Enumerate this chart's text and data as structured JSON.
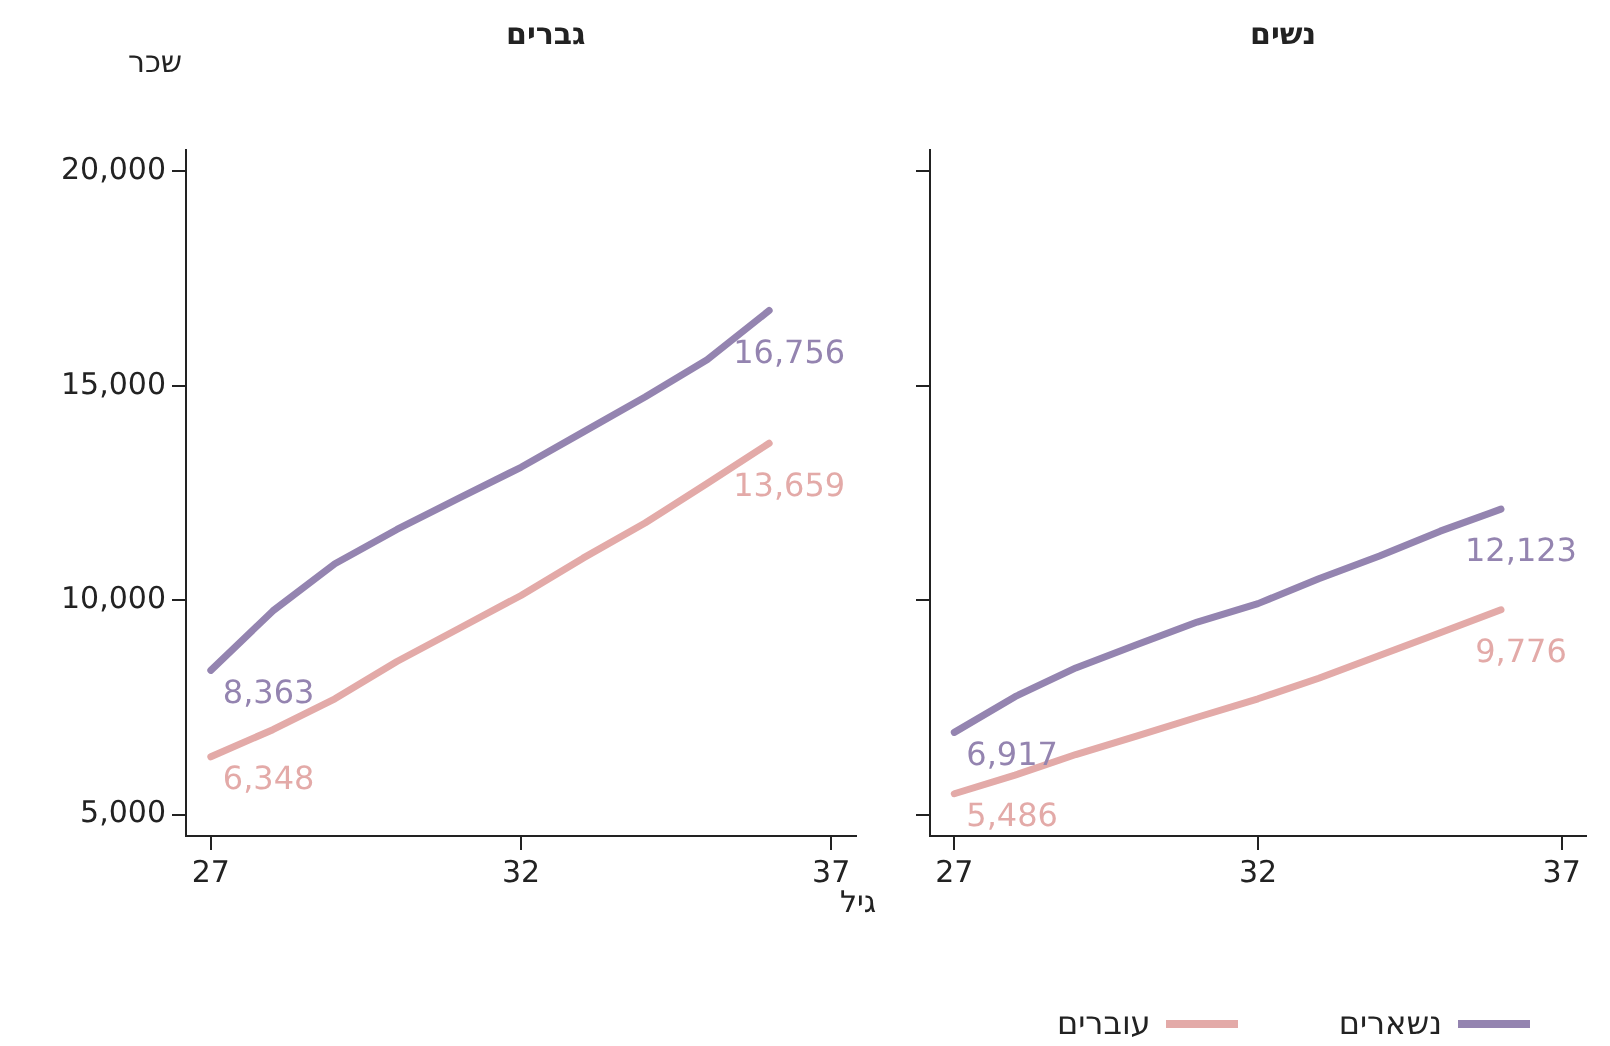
{
  "chart_data": [
    {
      "type": "line",
      "title": "גברים",
      "xlabel": "גיל",
      "ylabel": "שכר",
      "x": [
        27,
        28,
        29,
        30,
        31,
        32,
        33,
        34,
        35,
        36
      ],
      "xlim": [
        26.6,
        37.4
      ],
      "xticks": [
        27,
        32,
        37
      ],
      "ylim": [
        4500,
        20500
      ],
      "yticks": [
        {
          "value": 5000,
          "label": "5,000"
        },
        {
          "value": 10000,
          "label": "10,000"
        },
        {
          "value": 15000,
          "label": "15,000"
        },
        {
          "value": 20000,
          "label": "20,000"
        }
      ],
      "grid": false,
      "marker": "none",
      "line_style": "solid",
      "legend": "bottom right",
      "series": [
        {
          "name": "נשארים",
          "color": "#9484b0",
          "values": [
            8363,
            9750,
            10850,
            11650,
            12380,
            13100,
            13920,
            14740,
            15610,
            16756
          ],
          "value_labels": [
            "8,363",
            null,
            null,
            null,
            null,
            null,
            null,
            null,
            null,
            "16,756"
          ]
        },
        {
          "name": "עוברים",
          "color": "#e3aaa8",
          "values": [
            6348,
            6980,
            7700,
            8570,
            9340,
            10110,
            10980,
            11800,
            12720,
            13659
          ],
          "value_labels": [
            "6,348",
            null,
            null,
            null,
            null,
            null,
            null,
            null,
            null,
            "13,659"
          ]
        }
      ]
    },
    {
      "type": "line",
      "title": "נשים",
      "x": [
        27,
        28,
        29,
        30,
        31,
        32,
        33,
        34,
        35,
        36
      ],
      "xlim": [
        26.6,
        37.4
      ],
      "xticks": [
        27,
        32,
        37
      ],
      "ylim": [
        4500,
        20500
      ],
      "yticks": [
        {
          "value": 5000,
          "label": null
        },
        {
          "value": 10000,
          "label": null
        },
        {
          "value": 15000,
          "label": null
        },
        {
          "value": 20000,
          "label": null
        }
      ],
      "tick_labels": "x",
      "grid": false,
      "marker": "none",
      "line_style": "solid",
      "series": [
        {
          "color": "#9484b0",
          "values": [
            6917,
            7750,
            8420,
            8960,
            9490,
            9920,
            10500,
            11030,
            11610,
            12123
          ],
          "value_labels": [
            "6,917",
            null,
            null,
            null,
            null,
            null,
            null,
            null,
            null,
            "12,123"
          ]
        },
        {
          "color": "#e3aaa8",
          "values": [
            5486,
            5920,
            6400,
            6830,
            7270,
            7700,
            8180,
            8710,
            9240,
            9776
          ],
          "value_labels": [
            "5,486",
            null,
            null,
            null,
            null,
            null,
            null,
            null,
            null,
            "9,776"
          ]
        }
      ]
    }
  ]
}
